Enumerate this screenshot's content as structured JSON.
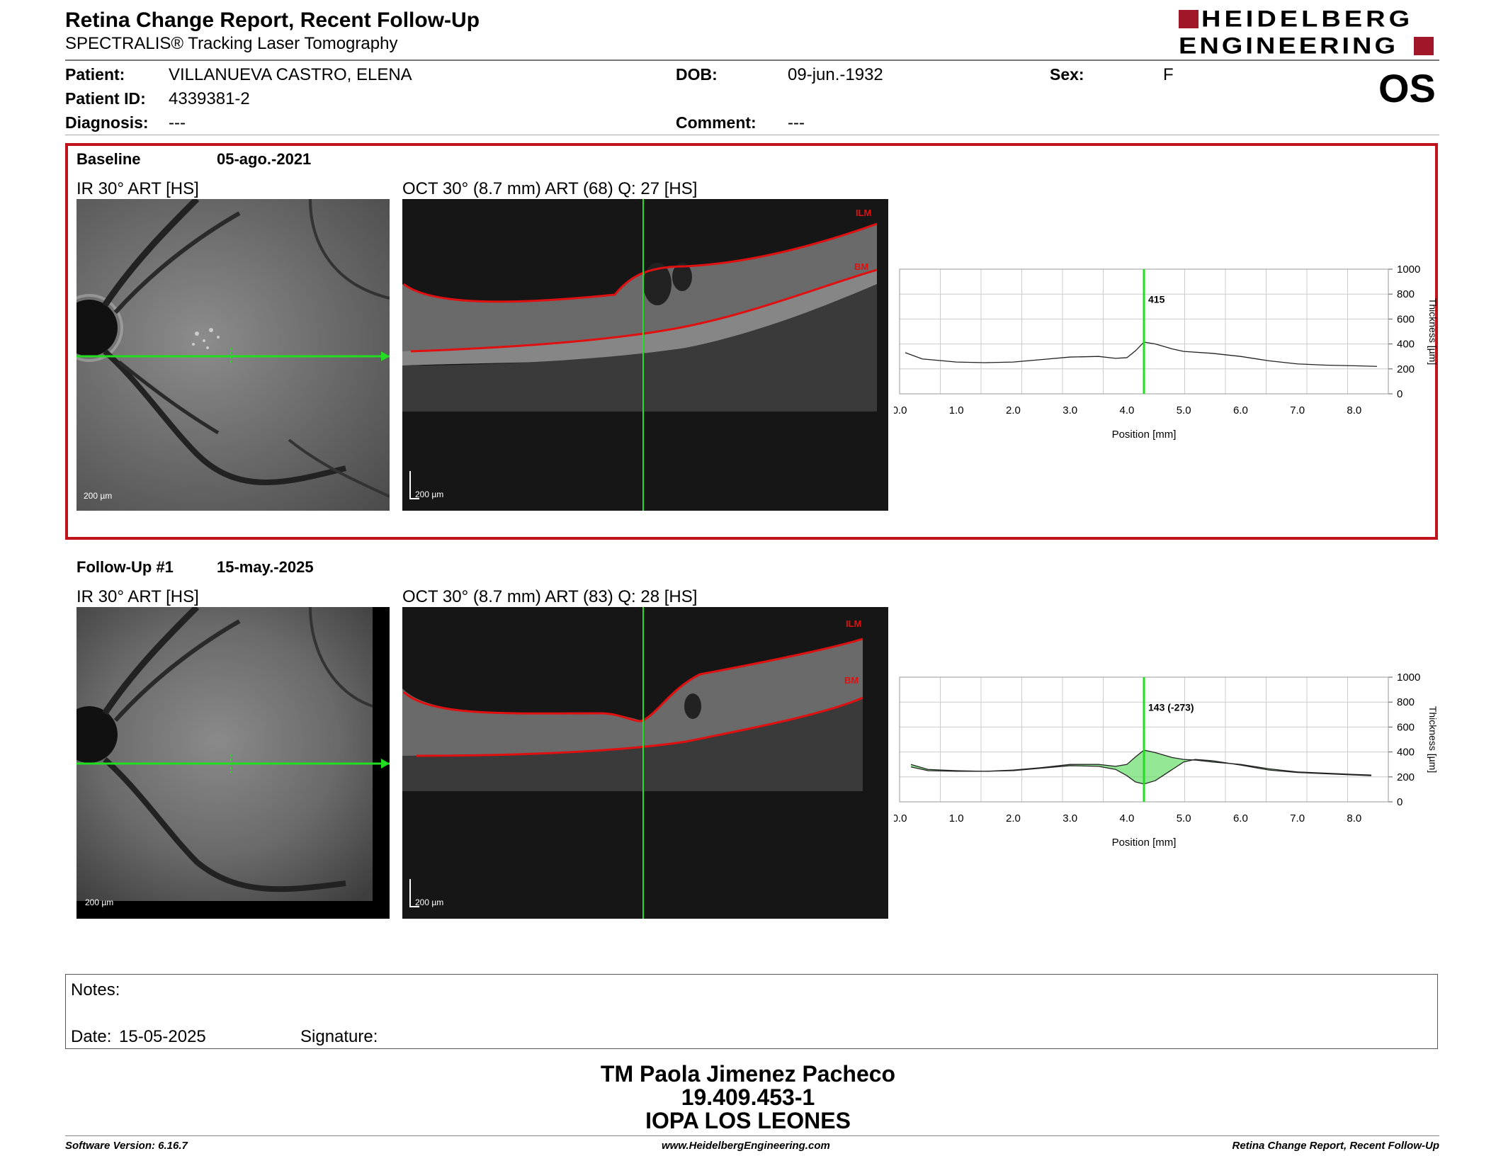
{
  "header": {
    "title": "Retina Change Report, Recent Follow-Up",
    "subtitle": "SPECTRALIS® Tracking Laser Tomography",
    "brand_line1": "HEIDELBERG",
    "brand_line2": "ENGINEERING",
    "eye": "OS"
  },
  "patient": {
    "patient_label": "Patient:",
    "patient_value": "VILLANUEVA CASTRO, ELENA",
    "id_label": "Patient ID:",
    "id_value": "4339381-2",
    "diagnosis_label": "Diagnosis:",
    "diagnosis_value": "---",
    "dob_label": "DOB:",
    "dob_value": "09-jun.-1932",
    "comment_label": "Comment:",
    "comment_value": "---",
    "sex_label": "Sex:",
    "sex_value": "F"
  },
  "baseline": {
    "label": "Baseline",
    "date": "05-ago.-2021",
    "ir_title": "IR 30° ART [HS]",
    "oct_title": "OCT 30° (8.7 mm) ART (68) Q: 27 [HS]",
    "scale_ir": "200 µm",
    "scale_oct": "200 µm",
    "ilm": "ILM",
    "bm": "BM"
  },
  "followup": {
    "label": "Follow-Up #1",
    "date": "15-may.-2025",
    "ir_title": "IR 30° ART [HS]",
    "oct_title": "OCT 30° (8.7 mm) ART (83) Q: 28 [HS]",
    "scale_ir": "200 µm",
    "scale_oct": "200 µm",
    "ilm": "ILM",
    "bm": "BM"
  },
  "chart_data": [
    {
      "type": "line",
      "xlabel": "Position [mm]",
      "ylabel": "Thickness [µm]",
      "xlim": [
        0,
        8.6
      ],
      "ylim": [
        0,
        1000
      ],
      "xticks": [
        "0.0",
        "1.0",
        "2.0",
        "3.0",
        "4.0",
        "5.0",
        "6.0",
        "7.0",
        "8.0"
      ],
      "yticks": [
        "0",
        "200",
        "400",
        "600",
        "800",
        "1000"
      ],
      "cursor_x": 4.3,
      "cursor_label": "415",
      "series": [
        {
          "x": [
            0.1,
            0.4,
            1.0,
            1.5,
            2.0,
            2.5,
            3.0,
            3.5,
            3.8,
            4.0,
            4.15,
            4.3,
            4.5,
            4.8,
            5.0,
            5.5,
            6.0,
            6.5,
            7.0,
            7.5,
            8.0,
            8.4
          ],
          "y": [
            330,
            280,
            255,
            250,
            255,
            275,
            295,
            300,
            285,
            290,
            345,
            415,
            400,
            360,
            340,
            325,
            300,
            265,
            240,
            230,
            225,
            220
          ]
        }
      ]
    },
    {
      "type": "line",
      "xlabel": "Position [mm]",
      "ylabel": "Thickness [µm]",
      "xlim": [
        0,
        8.6
      ],
      "ylim": [
        0,
        1000
      ],
      "xticks": [
        "0.0",
        "1.0",
        "2.0",
        "3.0",
        "4.0",
        "5.0",
        "6.0",
        "7.0",
        "8.0"
      ],
      "yticks": [
        "0",
        "200",
        "400",
        "600",
        "800",
        "1000"
      ],
      "cursor_x": 4.3,
      "cursor_label": "143 (-273)",
      "difference_fill_color": "#66dd66",
      "series": [
        {
          "x": [
            0.2,
            0.5,
            1.0,
            1.5,
            2.0,
            2.5,
            3.0,
            3.5,
            3.8,
            4.0,
            4.15,
            4.3,
            4.5,
            4.8,
            5.0,
            5.2,
            5.5,
            6.0,
            6.5,
            7.0,
            7.5,
            8.0,
            8.3
          ],
          "y": [
            280,
            250,
            245,
            245,
            250,
            270,
            290,
            285,
            260,
            210,
            160,
            143,
            170,
            260,
            320,
            340,
            330,
            295,
            255,
            235,
            225,
            215,
            210
          ]
        },
        {
          "x": [
            0.2,
            0.5,
            1.0,
            1.5,
            2.0,
            2.5,
            3.0,
            3.5,
            3.8,
            4.0,
            4.15,
            4.3,
            4.5,
            4.8,
            5.0,
            5.2,
            5.5,
            6.0,
            6.5,
            7.0,
            7.5,
            8.0,
            8.3
          ],
          "y": [
            300,
            260,
            250,
            245,
            255,
            275,
            300,
            300,
            285,
            300,
            360,
            415,
            395,
            355,
            340,
            335,
            320,
            300,
            265,
            240,
            230,
            220,
            215
          ]
        }
      ]
    }
  ],
  "notes": {
    "notes_label": "Notes:",
    "date_label": "Date:",
    "date_value": "15-05-2025",
    "signature_label": "Signature:"
  },
  "signer": {
    "name": "TM Paola Jimenez Pacheco",
    "rut": "19.409.453-1",
    "place": "IOPA LOS LEONES"
  },
  "footer": {
    "software": "Software Version: 6.16.7",
    "url": "www.HeidelbergEngineering.com",
    "report": "Retina Change Report, Recent Follow-Up"
  },
  "colors": {
    "highlight_border": "#c0141c",
    "brand": "#a0172a",
    "cursor": "#22dd22",
    "segmentation": "#e01010"
  }
}
